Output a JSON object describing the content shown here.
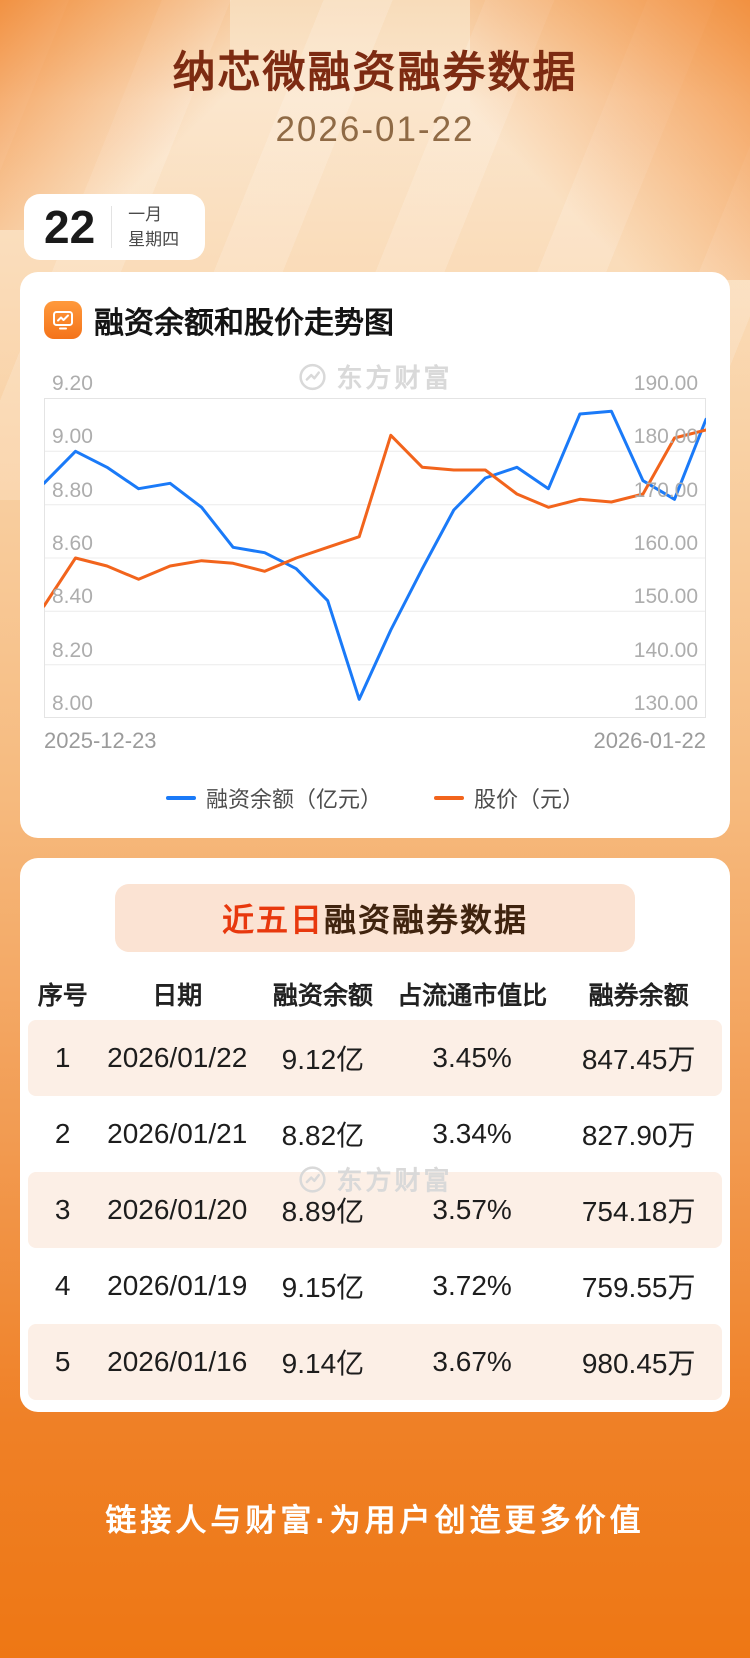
{
  "header": {
    "title": "纳芯微融资融券数据",
    "date": "2026-01-22"
  },
  "date_card": {
    "day": "22",
    "month": "一月",
    "weekday": "星期四"
  },
  "chart_section": {
    "heading": "融资余额和股价走势图",
    "watermark": "东方财富",
    "x_start_label": "2025-12-23",
    "x_end_label": "2026-01-22"
  },
  "chart_data": {
    "type": "line",
    "title": "融资余额和股价走势图",
    "x_visible_labels": [
      "2025-12-23",
      "2026-01-22"
    ],
    "points_count": 22,
    "grid": true,
    "legend_position": "bottom",
    "left_axis": {
      "min": 8.0,
      "max": 9.2,
      "step": 0.2,
      "tick_labels": [
        "9.20",
        "9.00",
        "8.80",
        "8.60",
        "8.40",
        "8.20",
        "8.00"
      ]
    },
    "right_axis": {
      "min": 130,
      "max": 190,
      "step": 10,
      "tick_labels": [
        "190.00",
        "180.00",
        "170.00",
        "160.00",
        "150.00",
        "140.00",
        "130.00"
      ]
    },
    "series": [
      {
        "name": "融资余额（亿元）",
        "axis": "left",
        "color": "#1a7af8",
        "values": [
          8.88,
          9.0,
          8.94,
          8.86,
          8.88,
          8.79,
          8.64,
          8.62,
          8.56,
          8.44,
          8.07,
          8.33,
          8.56,
          8.78,
          8.9,
          8.94,
          8.86,
          9.14,
          9.15,
          8.89,
          8.82,
          9.12
        ]
      },
      {
        "name": "股价（元）",
        "axis": "right",
        "color": "#f2641c",
        "values": [
          151,
          160,
          158.5,
          156,
          158.5,
          159.5,
          159,
          157.5,
          160,
          162,
          164,
          183,
          177,
          176.5,
          176.5,
          172,
          169.5,
          171,
          170.5,
          172,
          182.5,
          184
        ]
      }
    ]
  },
  "table_section": {
    "title": {
      "highlight": "近五日",
      "rest": "融资融券数据"
    },
    "watermark": "东方财富",
    "columns": [
      "序号",
      "日期",
      "融资余额",
      "占流通市值比",
      "融券余额"
    ],
    "rows": [
      [
        "1",
        "2026/01/22",
        "9.12亿",
        "3.45%",
        "847.45万"
      ],
      [
        "2",
        "2026/01/21",
        "8.82亿",
        "3.34%",
        "827.90万"
      ],
      [
        "3",
        "2026/01/20",
        "8.89亿",
        "3.57%",
        "754.18万"
      ],
      [
        "4",
        "2026/01/19",
        "9.15亿",
        "3.72%",
        "759.55万"
      ],
      [
        "5",
        "2026/01/16",
        "9.14亿",
        "3.67%",
        "980.45万"
      ]
    ]
  },
  "footer": {
    "slogan": "链接人与财富·为用户创造更多价值"
  },
  "colors": {
    "accent_orange": "#f2771c",
    "title_text": "#7d2b12",
    "highlight_red": "#e8380d",
    "blue_line": "#1a7af8",
    "orange_line": "#f2641c"
  }
}
